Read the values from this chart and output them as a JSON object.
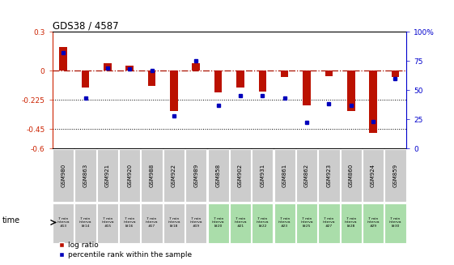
{
  "title": "GDS38 / 4587",
  "samples": [
    "GSM980",
    "GSM863",
    "GSM921",
    "GSM920",
    "GSM988",
    "GSM922",
    "GSM989",
    "GSM858",
    "GSM902",
    "GSM931",
    "GSM861",
    "GSM862",
    "GSM923",
    "GSM860",
    "GSM924",
    "GSM859"
  ],
  "time_labels": [
    "7 min\ninterva\n#13",
    "7 min\ninterva\nl#14",
    "7 min\ninterva\n#15",
    "7 min\ninterva\nl#16",
    "7 min\ninterva\n#17",
    "7 min\ninterva\nl#18",
    "7 min\ninterva\n#19",
    "7 min\ninterva\nl#20",
    "7 min\ninterva\n#21",
    "7 min\ninterva\nl#22",
    "7 min\ninterva\n#23",
    "7 min\ninterva\nl#25",
    "7 min\ninterva\n#27",
    "7 min\ninterva\nl#28",
    "7 min\ninterva\n#29",
    "7 min\ninterva\nl#30"
  ],
  "log_ratio": [
    0.18,
    -0.13,
    0.06,
    0.04,
    -0.12,
    -0.31,
    0.06,
    -0.17,
    -0.13,
    -0.16,
    -0.05,
    -0.27,
    -0.04,
    -0.31,
    -0.48,
    -0.05
  ],
  "percentile": [
    82,
    43,
    69,
    68,
    67,
    28,
    75,
    37,
    45,
    45,
    43,
    22,
    38,
    37,
    23,
    60
  ],
  "ylim_left": [
    -0.6,
    0.3
  ],
  "ylim_right": [
    0,
    100
  ],
  "yticks_left": [
    0.3,
    0,
    -0.225,
    -0.45,
    -0.6
  ],
  "yticks_right": [
    100,
    75,
    50,
    25,
    0
  ],
  "hlines_dotted": [
    -0.225,
    -0.45
  ],
  "bar_color": "#bb1100",
  "dot_color": "#0000bb",
  "bg_color": "#ffffff",
  "sample_box_color": "#cccccc",
  "time_box_colors_gray": [
    "#cccccc",
    "#cccccc",
    "#cccccc",
    "#cccccc",
    "#cccccc",
    "#cccccc",
    "#cccccc"
  ],
  "time_box_colors_green": [
    "#aaddaa",
    "#aaddaa",
    "#aaddaa",
    "#aaddaa",
    "#aaddaa",
    "#aaddaa",
    "#aaddaa",
    "#aaddaa",
    "#aaddaa"
  ],
  "legend_bar_label": "log ratio",
  "legend_dot_label": "percentile rank within the sample",
  "xlabel": "time"
}
